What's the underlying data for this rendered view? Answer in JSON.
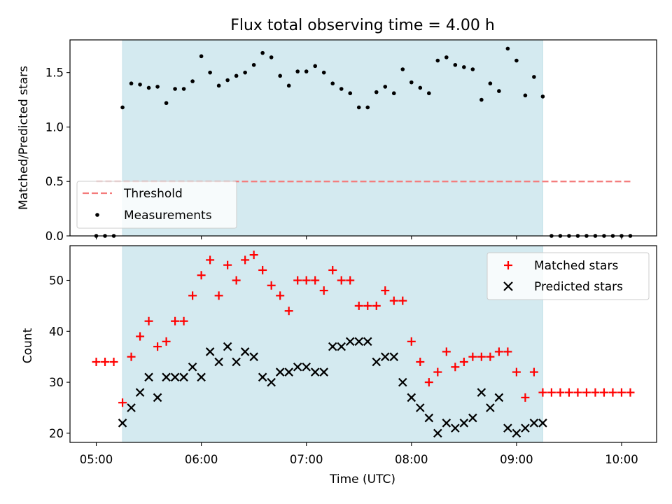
{
  "chart_data": [
    {
      "type": "scatter",
      "title": "Flux total observing time = 4.00 h",
      "xlabel": "",
      "ylabel": "Matched/Predicted stars",
      "xlim": [
        "04:45",
        "10:20"
      ],
      "ylim": [
        0,
        1.8
      ],
      "yticks": [
        "0.0",
        "0.5",
        "1.0",
        "1.5"
      ],
      "shaded_interval": [
        "05:15",
        "09:15"
      ],
      "shade_color": "#d4eaf0",
      "legend_position": "lower-left",
      "series": [
        {
          "name": "Threshold",
          "style": "dashed-line",
          "color": "#f47b7b",
          "x": [
            "05:00",
            "10:05"
          ],
          "y": [
            0.5,
            0.5
          ]
        },
        {
          "name": "Measurements",
          "style": "dot",
          "color": "#000000",
          "x": [
            "05:00",
            "05:05",
            "05:10",
            "05:15",
            "05:20",
            "05:25",
            "05:30",
            "05:35",
            "05:40",
            "05:45",
            "05:50",
            "05:55",
            "06:00",
            "06:05",
            "06:10",
            "06:15",
            "06:20",
            "06:25",
            "06:30",
            "06:35",
            "06:40",
            "06:45",
            "06:50",
            "06:55",
            "07:00",
            "07:05",
            "07:10",
            "07:15",
            "07:20",
            "07:25",
            "07:30",
            "07:35",
            "07:40",
            "07:45",
            "07:50",
            "07:55",
            "08:00",
            "08:05",
            "08:10",
            "08:15",
            "08:20",
            "08:25",
            "08:30",
            "08:35",
            "08:40",
            "08:45",
            "08:50",
            "08:55",
            "09:00",
            "09:05",
            "09:10",
            "09:15",
            "09:20",
            "09:25",
            "09:30",
            "09:35",
            "09:40",
            "09:45",
            "09:50",
            "09:55",
            "10:00",
            "10:05"
          ],
          "y": [
            0,
            0,
            0,
            1.18,
            1.4,
            1.39,
            1.36,
            1.37,
            1.22,
            1.35,
            1.35,
            1.42,
            1.65,
            1.5,
            1.38,
            1.43,
            1.47,
            1.5,
            1.57,
            1.68,
            1.64,
            1.47,
            1.38,
            1.51,
            1.51,
            1.56,
            1.5,
            1.4,
            1.35,
            1.31,
            1.18,
            1.18,
            1.32,
            1.37,
            1.31,
            1.53,
            1.41,
            1.36,
            1.31,
            1.61,
            1.64,
            1.57,
            1.55,
            1.53,
            1.25,
            1.4,
            1.33,
            1.72,
            1.61,
            1.29,
            1.46,
            1.28,
            0,
            0,
            0,
            0,
            0,
            0,
            0,
            0,
            0,
            0
          ]
        }
      ]
    },
    {
      "type": "scatter",
      "title": "",
      "xlabel": "Time (UTC)",
      "ylabel": "Count",
      "xlim": [
        "04:45",
        "10:20"
      ],
      "ylim": [
        18.2,
        56.8
      ],
      "yticks": [
        "20",
        "30",
        "40",
        "50"
      ],
      "xticks": [
        "05:00",
        "06:00",
        "07:00",
        "08:00",
        "09:00",
        "10:00"
      ],
      "shaded_interval": [
        "05:15",
        "09:15"
      ],
      "shade_color": "#d4eaf0",
      "legend_position": "top-right",
      "series": [
        {
          "name": "Matched stars",
          "style": "plus",
          "color": "#ff0000",
          "x": [
            "05:00",
            "05:05",
            "05:10",
            "05:15",
            "05:20",
            "05:25",
            "05:30",
            "05:35",
            "05:40",
            "05:45",
            "05:50",
            "05:55",
            "06:00",
            "06:05",
            "06:10",
            "06:15",
            "06:20",
            "06:25",
            "06:30",
            "06:35",
            "06:40",
            "06:45",
            "06:50",
            "06:55",
            "07:00",
            "07:05",
            "07:10",
            "07:15",
            "07:20",
            "07:25",
            "07:30",
            "07:35",
            "07:40",
            "07:45",
            "07:50",
            "07:55",
            "08:00",
            "08:05",
            "08:10",
            "08:15",
            "08:20",
            "08:25",
            "08:30",
            "08:35",
            "08:40",
            "08:45",
            "08:50",
            "08:55",
            "09:00",
            "09:05",
            "09:10",
            "09:15",
            "09:20",
            "09:25",
            "09:30",
            "09:35",
            "09:40",
            "09:45",
            "09:50",
            "09:55",
            "10:00",
            "10:05"
          ],
          "y": [
            34,
            34,
            34,
            26,
            35,
            39,
            42,
            37,
            38,
            42,
            42,
            47,
            51,
            54,
            47,
            53,
            50,
            54,
            55,
            52,
            49,
            47,
            44,
            50,
            50,
            50,
            48,
            52,
            50,
            50,
            45,
            45,
            45,
            48,
            46,
            46,
            38,
            34,
            30,
            32,
            36,
            33,
            34,
            35,
            35,
            35,
            36,
            36,
            32,
            27,
            32,
            28,
            28,
            28,
            28,
            28,
            28,
            28,
            28,
            28,
            28,
            28
          ]
        },
        {
          "name": "Predicted stars",
          "style": "x",
          "color": "#000000",
          "x": [
            "05:15",
            "05:20",
            "05:25",
            "05:30",
            "05:35",
            "05:40",
            "05:45",
            "05:50",
            "05:55",
            "06:00",
            "06:05",
            "06:10",
            "06:15",
            "06:20",
            "06:25",
            "06:30",
            "06:35",
            "06:40",
            "06:45",
            "06:50",
            "06:55",
            "07:00",
            "07:05",
            "07:10",
            "07:15",
            "07:20",
            "07:25",
            "07:30",
            "07:35",
            "07:40",
            "07:45",
            "07:50",
            "07:55",
            "08:00",
            "08:05",
            "08:10",
            "08:15",
            "08:20",
            "08:25",
            "08:30",
            "08:35",
            "08:40",
            "08:45",
            "08:50",
            "08:55",
            "09:00",
            "09:05",
            "09:10",
            "09:15"
          ],
          "y": [
            22,
            25,
            28,
            31,
            27,
            31,
            31,
            31,
            33,
            31,
            36,
            34,
            37,
            34,
            36,
            35,
            31,
            30,
            32,
            32,
            33,
            33,
            32,
            32,
            37,
            37,
            38,
            38,
            38,
            34,
            35,
            35,
            30,
            27,
            25,
            23,
            20,
            22,
            21,
            22,
            23,
            28,
            25,
            27,
            21,
            20,
            21,
            22,
            22
          ]
        }
      ]
    }
  ]
}
